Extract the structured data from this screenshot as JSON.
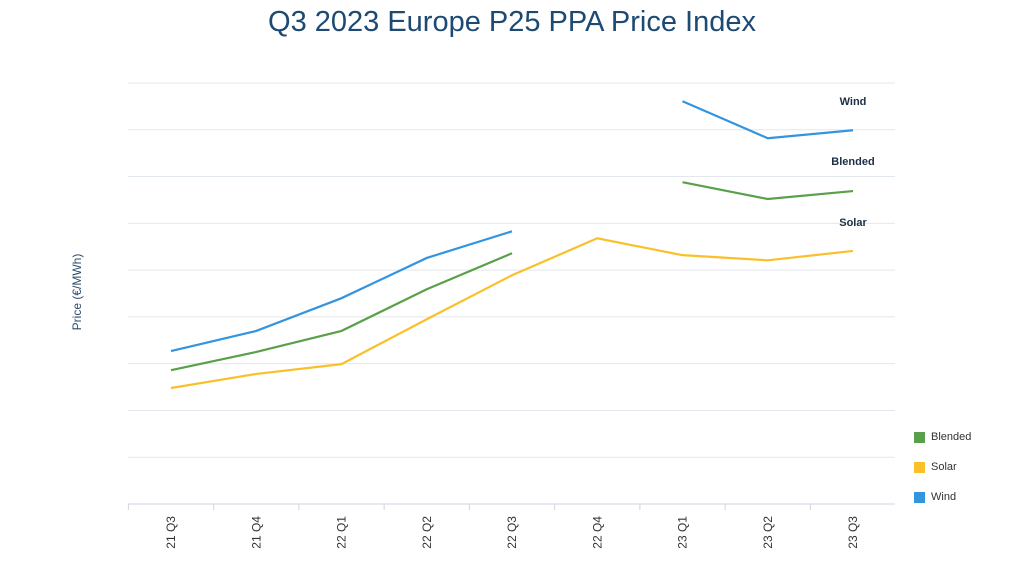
{
  "chart_data": {
    "type": "line",
    "title": "Q3 2023 Europe P25 PPA Price Index",
    "xlabel": "",
    "ylabel": "Price (€/MWh)",
    "categories": [
      "21 Q3",
      "21 Q4",
      "22 Q1",
      "22 Q2",
      "22 Q3",
      "22 Q4",
      "23 Q1",
      "23 Q2",
      "23 Q3"
    ],
    "ylim": [
      0,
      9
    ],
    "y_tick_labels_shown": false,
    "grid": true,
    "legend_placement": "bottom-right",
    "series": [
      {
        "name": "Blended",
        "color": "#5aa04a",
        "values": [
          2.86,
          3.25,
          3.7,
          4.59,
          5.36,
          null,
          6.88,
          6.52,
          6.69
        ]
      },
      {
        "name": "Solar",
        "color": "#f9c02a",
        "values": [
          2.48,
          2.78,
          2.99,
          3.95,
          4.89,
          5.68,
          5.32,
          5.21,
          5.41
        ]
      },
      {
        "name": "Wind",
        "color": "#3394e0",
        "values": [
          3.27,
          3.7,
          4.4,
          5.26,
          5.83,
          null,
          8.61,
          7.82,
          7.99
        ]
      }
    ],
    "annotations": [
      "Wind",
      "Blended",
      "Solar"
    ]
  }
}
